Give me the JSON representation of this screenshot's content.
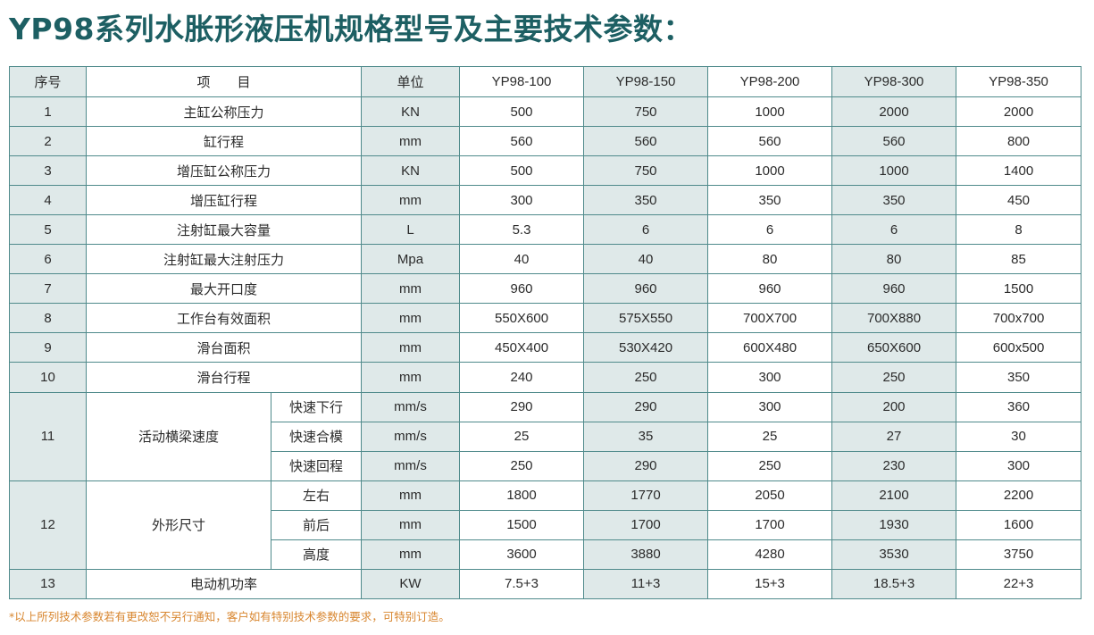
{
  "title": "YP98系列水胀形液压机规格型号及主要技术参数：",
  "header": {
    "seq": "序号",
    "item": "项　　目",
    "unit": "单位",
    "models": [
      "YP98-100",
      "YP98-150",
      "YP98-200",
      "YP98-300",
      "YP98-350"
    ]
  },
  "rows": [
    {
      "seq": "1",
      "item": "主缸公称压力",
      "unit": "KN",
      "values": [
        "500",
        "750",
        "1000",
        "2000",
        "2000"
      ]
    },
    {
      "seq": "2",
      "item": "缸行程",
      "unit": "mm",
      "values": [
        "560",
        "560",
        "560",
        "560",
        "800"
      ]
    },
    {
      "seq": "3",
      "item": "增压缸公称压力",
      "unit": "KN",
      "values": [
        "500",
        "750",
        "1000",
        "1000",
        "1400"
      ]
    },
    {
      "seq": "4",
      "item": "增压缸行程",
      "unit": "mm",
      "values": [
        "300",
        "350",
        "350",
        "350",
        "450"
      ]
    },
    {
      "seq": "5",
      "item": "注射缸最大容量",
      "unit": "L",
      "values": [
        "5.3",
        "6",
        "6",
        "6",
        "8"
      ]
    },
    {
      "seq": "6",
      "item": "注射缸最大注射压力",
      "unit": "Mpa",
      "values": [
        "40",
        "40",
        "80",
        "80",
        "85"
      ]
    },
    {
      "seq": "7",
      "item": "最大开口度",
      "unit": "mm",
      "values": [
        "960",
        "960",
        "960",
        "960",
        "1500"
      ]
    },
    {
      "seq": "8",
      "item": "工作台有效面积",
      "unit": "mm",
      "values": [
        "550X600",
        "575X550",
        "700X700",
        "700X880",
        "700x700"
      ]
    },
    {
      "seq": "9",
      "item": "滑台面积",
      "unit": "mm",
      "values": [
        "450X400",
        "530X420",
        "600X480",
        "650X600",
        "600x500"
      ]
    },
    {
      "seq": "10",
      "item": "滑台行程",
      "unit": "mm",
      "values": [
        "240",
        "250",
        "300",
        "250",
        "350"
      ]
    }
  ],
  "group11": {
    "seq": "11",
    "item": "活动横梁速度",
    "subs": [
      {
        "sub": "快速下行",
        "unit": "mm/s",
        "values": [
          "290",
          "290",
          "300",
          "200",
          "360"
        ]
      },
      {
        "sub": "快速合模",
        "unit": "mm/s",
        "values": [
          "25",
          "35",
          "25",
          "27",
          "30"
        ]
      },
      {
        "sub": "快速回程",
        "unit": "mm/s",
        "values": [
          "250",
          "290",
          "250",
          "230",
          "300"
        ]
      }
    ]
  },
  "group12": {
    "seq": "12",
    "item": "外形尺寸",
    "subs": [
      {
        "sub": "左右",
        "unit": "mm",
        "values": [
          "1800",
          "1770",
          "2050",
          "2100",
          "2200"
        ]
      },
      {
        "sub": "前后",
        "unit": "mm",
        "values": [
          "1500",
          "1700",
          "1700",
          "1930",
          "1600"
        ]
      },
      {
        "sub": "高度",
        "unit": "mm",
        "values": [
          "3600",
          "3880",
          "4280",
          "3530",
          "3750"
        ]
      }
    ]
  },
  "row13": {
    "seq": "13",
    "item": "电动机功率",
    "unit": "KW",
    "values": [
      "7.5+3",
      "11+3",
      "15+3",
      "18.5+3",
      "22+3"
    ]
  },
  "note": "*以上所列技术参数若有更改恕不另行通知，客户如有特别技术参数的要求，可特别订造。",
  "colors": {
    "title": "#1d5f63",
    "border": "#4f8a8b",
    "shade": "#dfe9e9",
    "note": "#d8862f"
  }
}
